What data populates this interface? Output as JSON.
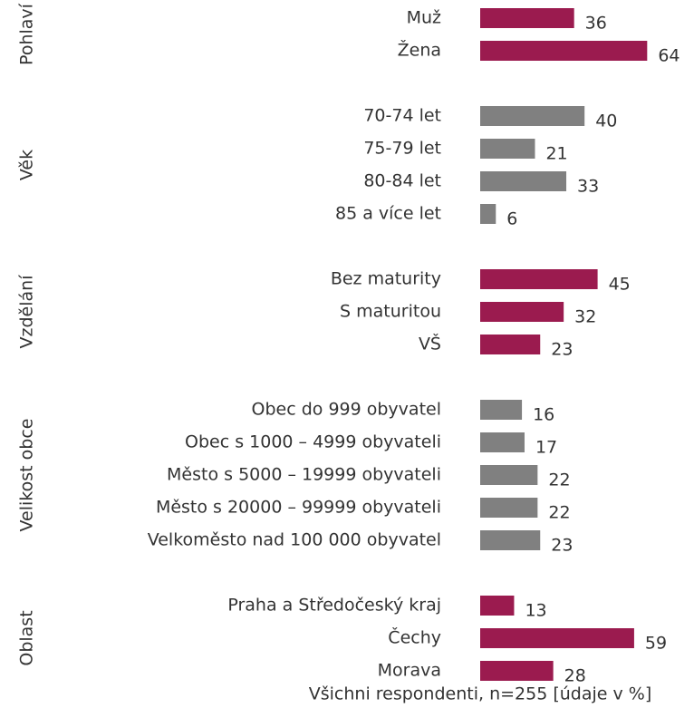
{
  "chart_data": {
    "type": "bar",
    "orientation": "horizontal",
    "groups": [
      {
        "name": "Pohlaví",
        "color": "#9b1b4f",
        "categories": [
          "Muž",
          "Žena"
        ],
        "values": [
          36,
          64
        ]
      },
      {
        "name": "Věk",
        "color": "#808080",
        "categories": [
          "70-74 let",
          "75-79 let",
          "80-84 let",
          "85 a více let"
        ],
        "values": [
          40,
          21,
          33,
          6
        ]
      },
      {
        "name": "Vzdělání",
        "color": "#9b1b4f",
        "categories": [
          "Bez maturity",
          "S maturitou",
          "VŠ"
        ],
        "values": [
          45,
          32,
          23
        ]
      },
      {
        "name": "Velikost obce",
        "color": "#808080",
        "categories": [
          "Obec do 999 obyvatel",
          "Obec s 1000 – 4999 obyvateli",
          "Město s 5000 – 19999 obyvateli",
          "Město s 20000 – 99999 obyvateli",
          "Velkoměsto nad 100 000 obyvatel"
        ],
        "values": [
          16,
          17,
          22,
          22,
          23
        ]
      },
      {
        "name": "Oblast",
        "color": "#9b1b4f",
        "categories": [
          "Praha a Středočeský kraj",
          "Čechy",
          "Morava"
        ],
        "values": [
          13,
          59,
          28
        ]
      }
    ],
    "caption": "Všichni respondenti, n=255 [údaje v %]"
  }
}
